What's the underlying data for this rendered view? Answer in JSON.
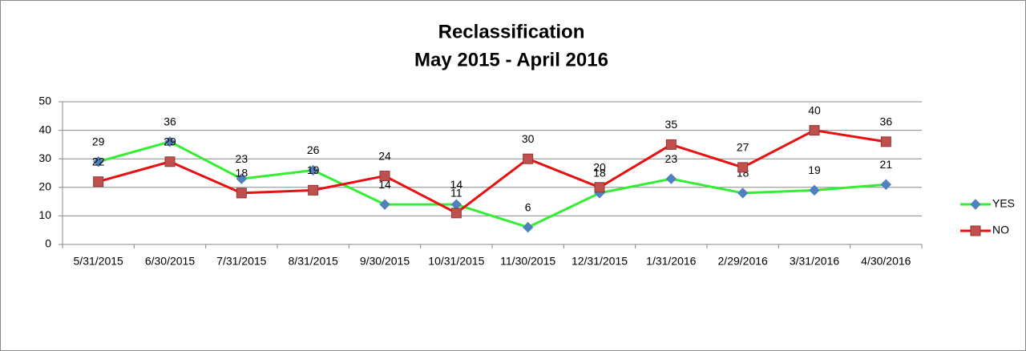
{
  "chart_data": {
    "type": "line",
    "title": "Reclassification",
    "subtitle": "May 2015 - April 2016",
    "categories": [
      "5/31/2015",
      "6/30/2015",
      "7/31/2015",
      "8/31/2015",
      "9/30/2015",
      "10/31/2015",
      "11/30/2015",
      "12/31/2015",
      "1/31/2016",
      "2/29/2016",
      "3/31/2016",
      "4/30/2016"
    ],
    "series": [
      {
        "name": "YES",
        "color": "#33ee33",
        "marker_color": "#4f81bd",
        "marker": "diamond",
        "values": [
          29,
          36,
          23,
          26,
          14,
          14,
          6,
          18,
          23,
          18,
          19,
          21
        ]
      },
      {
        "name": "NO",
        "color": "#e81010",
        "marker_color": "#c0504d",
        "marker": "square",
        "values": [
          22,
          29,
          18,
          19,
          24,
          11,
          30,
          20,
          35,
          27,
          40,
          36
        ]
      }
    ],
    "ylim": [
      0,
      50
    ],
    "yticks": [
      0,
      10,
      20,
      30,
      40,
      50
    ],
    "grid": true,
    "legend": "right",
    "data_labels": true
  }
}
